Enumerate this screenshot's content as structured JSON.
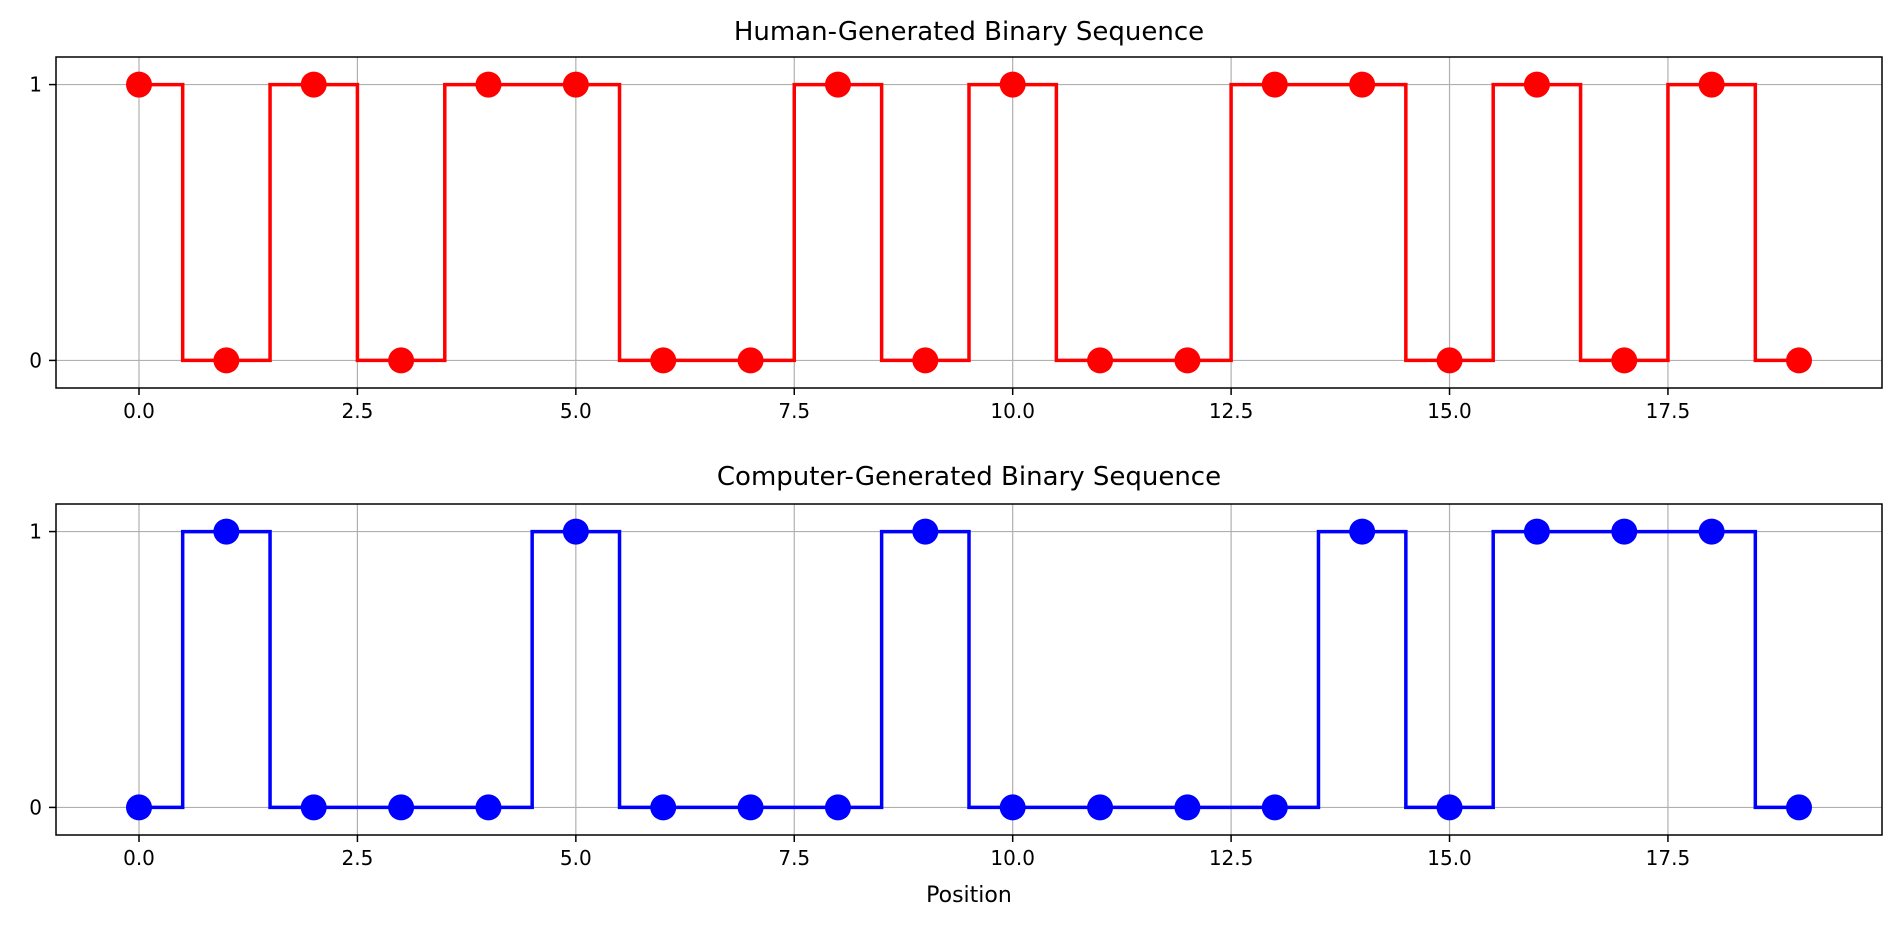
{
  "chart_data": [
    {
      "type": "line",
      "step": "mid",
      "title": "Human-Generated Binary Sequence",
      "xlabel": "",
      "ylabel": "",
      "x": [
        0,
        1,
        2,
        3,
        4,
        5,
        6,
        7,
        8,
        9,
        10,
        11,
        12,
        13,
        14,
        15,
        16,
        17,
        18,
        19
      ],
      "series": [
        {
          "values": [
            1,
            0,
            1,
            0,
            1,
            1,
            0,
            0,
            1,
            0,
            1,
            0,
            0,
            1,
            1,
            0,
            1,
            0,
            1,
            0
          ],
          "color": "#ff0000"
        }
      ],
      "xlim": [
        -0.95,
        19.95
      ],
      "ylim": [
        -0.1,
        1.1
      ],
      "xticks": [
        0.0,
        2.5,
        5.0,
        7.5,
        10.0,
        12.5,
        15.0,
        17.5
      ],
      "xtick_labels": [
        "0.0",
        "2.5",
        "5.0",
        "7.5",
        "10.0",
        "12.5",
        "15.0",
        "17.5"
      ],
      "yticks": [
        0,
        1
      ],
      "ytick_labels": [
        "0",
        "1"
      ],
      "grid": true
    },
    {
      "type": "line",
      "step": "mid",
      "title": "Computer-Generated Binary Sequence",
      "xlabel": "Position",
      "ylabel": "",
      "x": [
        0,
        1,
        2,
        3,
        4,
        5,
        6,
        7,
        8,
        9,
        10,
        11,
        12,
        13,
        14,
        15,
        16,
        17,
        18,
        19
      ],
      "series": [
        {
          "values": [
            0,
            1,
            0,
            0,
            0,
            1,
            0,
            0,
            0,
            1,
            0,
            0,
            0,
            0,
            1,
            0,
            1,
            1,
            1,
            0
          ],
          "color": "#0000ff"
        }
      ],
      "xlim": [
        -0.95,
        19.95
      ],
      "ylim": [
        -0.1,
        1.1
      ],
      "xticks": [
        0.0,
        2.5,
        5.0,
        7.5,
        10.0,
        12.5,
        15.0,
        17.5
      ],
      "xtick_labels": [
        "0.0",
        "2.5",
        "5.0",
        "7.5",
        "10.0",
        "12.5",
        "15.0",
        "17.5"
      ],
      "yticks": [
        0,
        1
      ],
      "ytick_labels": [
        "0",
        "1"
      ],
      "grid": true
    }
  ]
}
